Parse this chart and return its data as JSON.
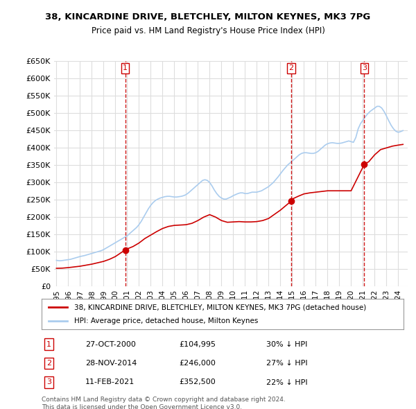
{
  "title_line1": "38, KINCARDINE DRIVE, BLETCHLEY, MILTON KEYNES, MK3 7PG",
  "title_line2": "Price paid vs. HM Land Registry's House Price Index (HPI)",
  "ylabel": "",
  "xlabel": "",
  "ylim": [
    0,
    650000
  ],
  "yticks": [
    0,
    50000,
    100000,
    150000,
    200000,
    250000,
    300000,
    350000,
    400000,
    450000,
    500000,
    550000,
    600000,
    650000
  ],
  "ytick_labels": [
    "£0",
    "£50K",
    "£100K",
    "£150K",
    "£200K",
    "£250K",
    "£300K",
    "£350K",
    "£400K",
    "£450K",
    "£500K",
    "£550K",
    "£600K",
    "£650K"
  ],
  "background_color": "#ffffff",
  "grid_color": "#dddddd",
  "sale_color": "#cc0000",
  "hpi_color": "#aaccee",
  "vline_color": "#cc0000",
  "marker_color": "#cc0000",
  "sale_label": "38, KINCARDINE DRIVE, BLETCHLEY, MILTON KEYNES, MK3 7PG (detached house)",
  "hpi_label": "HPI: Average price, detached house, Milton Keynes",
  "transactions": [
    {
      "num": 1,
      "date": "27-OCT-2000",
      "price": 104995,
      "pct": "30%",
      "dir": "↓",
      "x": 2000.83
    },
    {
      "num": 2,
      "date": "28-NOV-2014",
      "price": 246000,
      "pct": "27%",
      "dir": "↓",
      "x": 2014.91
    },
    {
      "num": 3,
      "date": "11-FEB-2021",
      "price": 352500,
      "pct": "22%",
      "dir": "↓",
      "x": 2021.12
    }
  ],
  "footnote": "Contains HM Land Registry data © Crown copyright and database right 2024.\nThis data is licensed under the Open Government Licence v3.0.",
  "hpi_data_x": [
    1995.0,
    1995.1,
    1995.2,
    1995.3,
    1995.4,
    1995.5,
    1995.6,
    1995.7,
    1995.8,
    1995.9,
    1996.0,
    1996.1,
    1996.2,
    1996.3,
    1996.4,
    1996.5,
    1996.6,
    1996.7,
    1996.8,
    1996.9,
    1997.0,
    1997.2,
    1997.4,
    1997.6,
    1997.8,
    1998.0,
    1998.2,
    1998.4,
    1998.6,
    1998.8,
    1999.0,
    1999.2,
    1999.4,
    1999.6,
    1999.8,
    2000.0,
    2000.2,
    2000.4,
    2000.6,
    2000.8,
    2001.0,
    2001.2,
    2001.4,
    2001.6,
    2001.8,
    2002.0,
    2002.2,
    2002.4,
    2002.6,
    2002.8,
    2003.0,
    2003.2,
    2003.4,
    2003.6,
    2003.8,
    2004.0,
    2004.2,
    2004.4,
    2004.6,
    2004.8,
    2005.0,
    2005.2,
    2005.4,
    2005.6,
    2005.8,
    2006.0,
    2006.2,
    2006.4,
    2006.6,
    2006.8,
    2007.0,
    2007.2,
    2007.4,
    2007.6,
    2007.8,
    2008.0,
    2008.2,
    2008.4,
    2008.6,
    2008.8,
    2009.0,
    2009.2,
    2009.4,
    2009.6,
    2009.8,
    2010.0,
    2010.2,
    2010.4,
    2010.6,
    2010.8,
    2011.0,
    2011.2,
    2011.4,
    2011.6,
    2011.8,
    2012.0,
    2012.2,
    2012.4,
    2012.6,
    2012.8,
    2013.0,
    2013.2,
    2013.4,
    2013.6,
    2013.8,
    2014.0,
    2014.2,
    2014.4,
    2014.6,
    2014.8,
    2015.0,
    2015.2,
    2015.4,
    2015.6,
    2015.8,
    2016.0,
    2016.2,
    2016.4,
    2016.6,
    2016.8,
    2017.0,
    2017.2,
    2017.4,
    2017.6,
    2017.8,
    2018.0,
    2018.2,
    2018.4,
    2018.6,
    2018.8,
    2019.0,
    2019.2,
    2019.4,
    2019.6,
    2019.8,
    2020.0,
    2020.2,
    2020.4,
    2020.6,
    2020.8,
    2021.0,
    2021.2,
    2021.4,
    2021.6,
    2021.8,
    2022.0,
    2022.2,
    2022.4,
    2022.6,
    2022.8,
    2023.0,
    2023.2,
    2023.4,
    2023.6,
    2023.8,
    2024.0,
    2024.2,
    2024.4
  ],
  "hpi_data_y": [
    75000,
    74500,
    74000,
    73800,
    74000,
    74500,
    75000,
    75500,
    76000,
    76500,
    77000,
    77500,
    78000,
    79000,
    80000,
    81000,
    82000,
    83000,
    84000,
    85000,
    86000,
    87500,
    89000,
    91000,
    93000,
    95000,
    97000,
    99000,
    101000,
    103000,
    106000,
    110000,
    114000,
    118000,
    122000,
    126000,
    130000,
    134000,
    138000,
    142000,
    146000,
    152000,
    158000,
    164000,
    170000,
    178000,
    188000,
    200000,
    212000,
    224000,
    234000,
    242000,
    248000,
    252000,
    255000,
    257000,
    259000,
    260000,
    260000,
    259000,
    258000,
    258000,
    259000,
    260000,
    262000,
    265000,
    270000,
    276000,
    282000,
    288000,
    294000,
    300000,
    306000,
    308000,
    306000,
    300000,
    290000,
    278000,
    268000,
    260000,
    255000,
    252000,
    252000,
    255000,
    258000,
    262000,
    265000,
    268000,
    270000,
    270000,
    268000,
    268000,
    270000,
    272000,
    272000,
    272000,
    274000,
    276000,
    280000,
    284000,
    288000,
    294000,
    300000,
    308000,
    316000,
    325000,
    334000,
    342000,
    350000,
    356000,
    362000,
    368000,
    374000,
    380000,
    384000,
    386000,
    386000,
    385000,
    384000,
    384000,
    386000,
    390000,
    396000,
    402000,
    408000,
    412000,
    414000,
    415000,
    414000,
    413000,
    413000,
    414000,
    416000,
    418000,
    420000,
    418000,
    416000,
    430000,
    455000,
    470000,
    480000,
    490000,
    498000,
    505000,
    510000,
    515000,
    520000,
    520000,
    515000,
    505000,
    492000,
    478000,
    465000,
    455000,
    448000,
    445000,
    447000,
    450000
  ],
  "sale_data_x": [
    1995.0,
    1995.5,
    1996.0,
    1996.5,
    1997.0,
    1997.5,
    1998.0,
    1998.5,
    1999.0,
    1999.5,
    2000.0,
    2000.83,
    2001.0,
    2001.5,
    2002.0,
    2002.5,
    2003.0,
    2003.5,
    2004.0,
    2004.5,
    2005.0,
    2005.5,
    2006.0,
    2006.5,
    2007.0,
    2007.5,
    2008.0,
    2008.5,
    2009.0,
    2009.5,
    2010.0,
    2010.5,
    2011.0,
    2011.5,
    2012.0,
    2012.5,
    2013.0,
    2013.5,
    2014.0,
    2014.91,
    2015.0,
    2015.5,
    2016.0,
    2016.5,
    2017.0,
    2017.5,
    2018.0,
    2018.5,
    2019.0,
    2019.5,
    2020.0,
    2021.12,
    2021.5,
    2022.0,
    2022.5,
    2023.0,
    2023.5,
    2024.0,
    2024.4
  ],
  "sale_data_y": [
    52000,
    52500,
    54000,
    56000,
    58000,
    61000,
    64000,
    68000,
    72000,
    78000,
    86000,
    104995,
    108000,
    115000,
    125000,
    138000,
    148000,
    158000,
    167000,
    173000,
    176000,
    177000,
    178000,
    182000,
    190000,
    200000,
    207000,
    200000,
    190000,
    185000,
    186000,
    187000,
    186000,
    186000,
    187000,
    190000,
    196000,
    208000,
    220000,
    246000,
    252000,
    260000,
    267000,
    270000,
    272000,
    274000,
    276000,
    276000,
    276000,
    276000,
    276000,
    352500,
    360000,
    380000,
    395000,
    400000,
    405000,
    408000,
    410000
  ]
}
